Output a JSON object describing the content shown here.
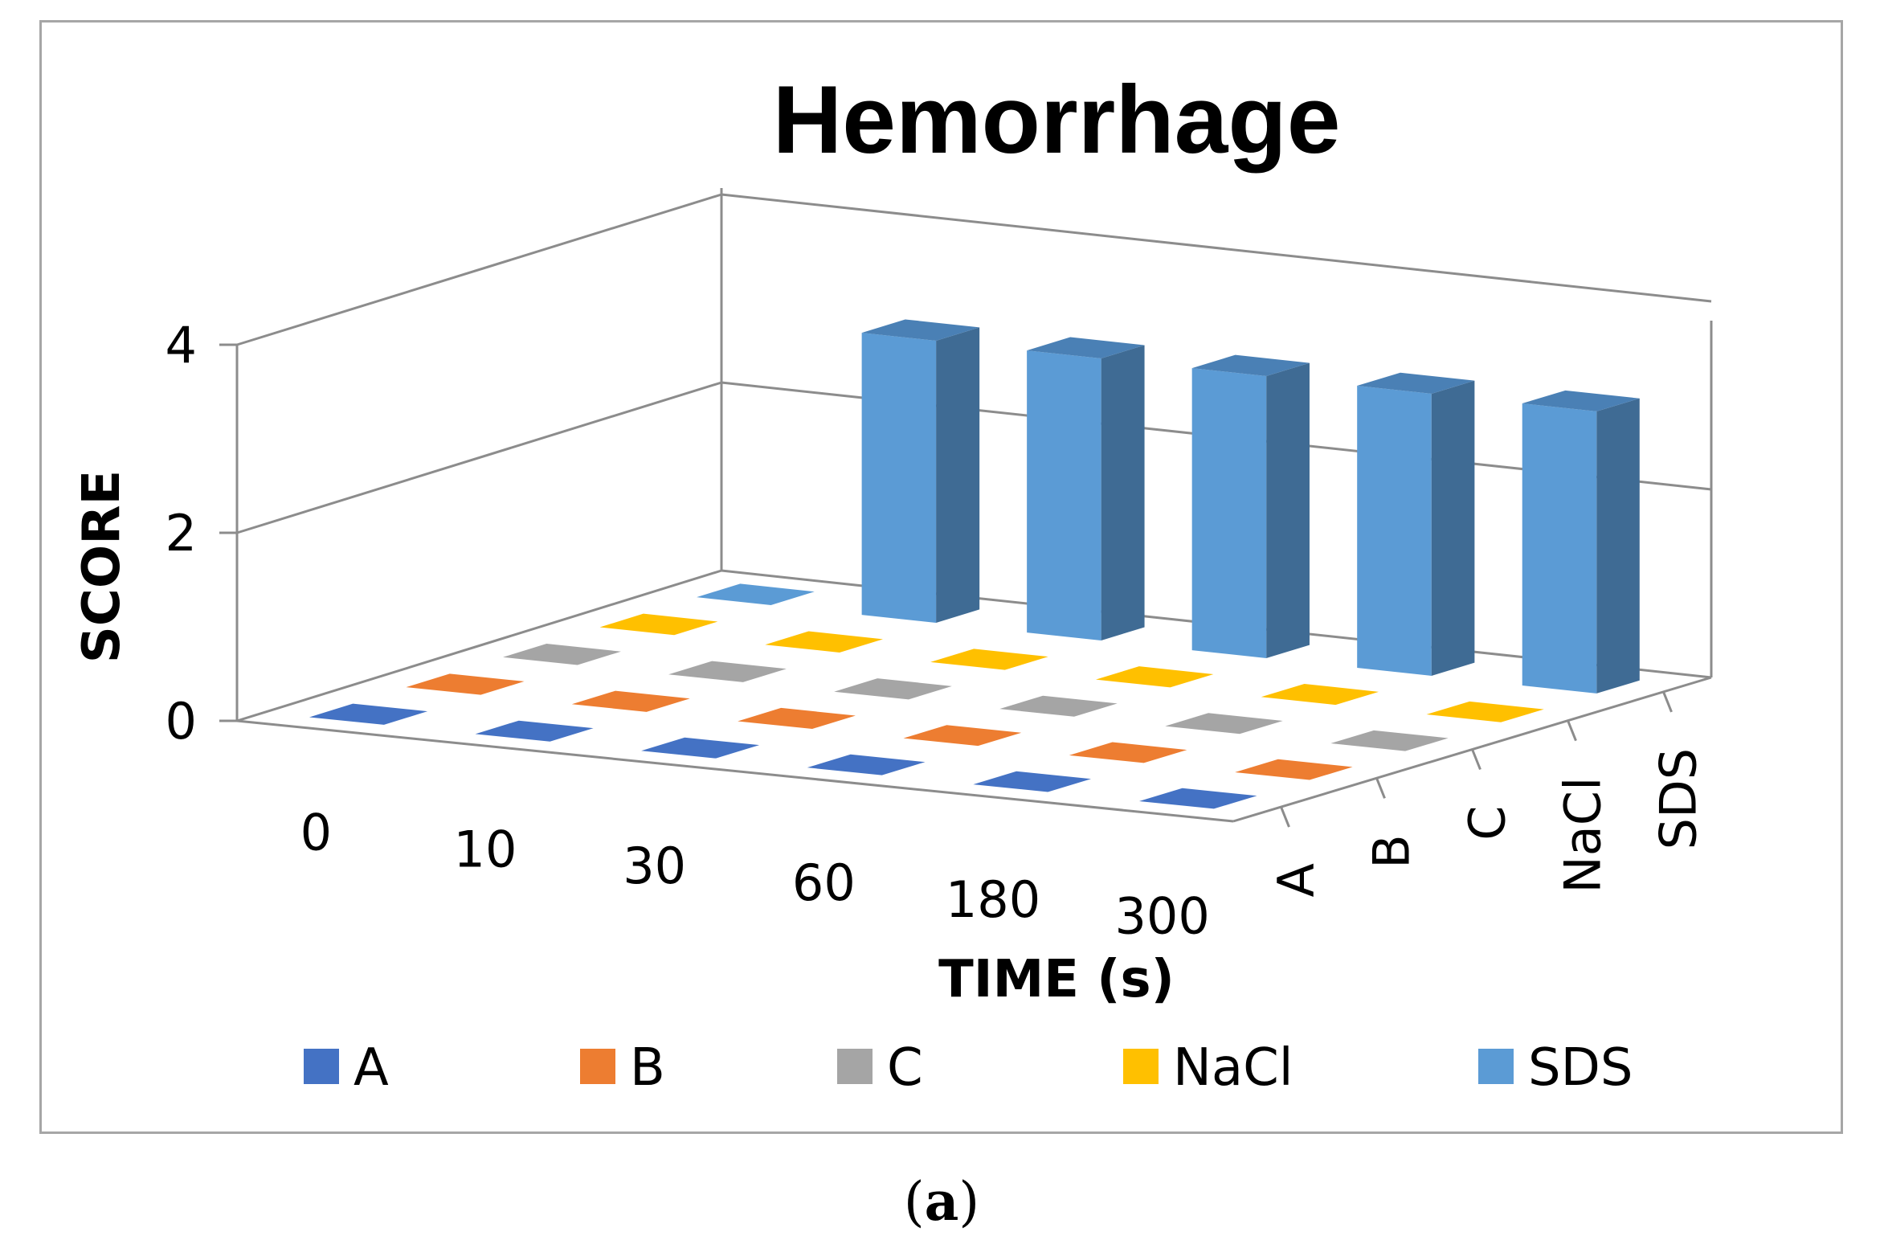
{
  "chart_data": {
    "type": "bar3d",
    "title": "Hemorrhage",
    "xlabel": "TIME (s)",
    "ylabel": "SCORE",
    "categories": [
      "0",
      "10",
      "30",
      "60",
      "180",
      "300"
    ],
    "yticks": [
      "0",
      "2",
      "4"
    ],
    "ylim": [
      0,
      4
    ],
    "series": [
      {
        "name": "A",
        "values": [
          0,
          0,
          0,
          0,
          0,
          0
        ],
        "color": "#4472c4"
      },
      {
        "name": "B",
        "values": [
          0,
          0,
          0,
          0,
          0,
          0
        ],
        "color": "#ed7d31"
      },
      {
        "name": "C",
        "values": [
          0,
          0,
          0,
          0,
          0,
          0
        ],
        "color": "#a5a5a5"
      },
      {
        "name": "NaCl",
        "values": [
          0,
          0,
          0,
          0,
          0,
          0
        ],
        "color": "#ffc000"
      },
      {
        "name": "SDS",
        "values": [
          0,
          3,
          3,
          3,
          3,
          3
        ],
        "color": "#5b9bd5"
      }
    ],
    "legend_position": "bottom"
  },
  "caption": {
    "open": "(",
    "letter": "a",
    "close": ")"
  }
}
